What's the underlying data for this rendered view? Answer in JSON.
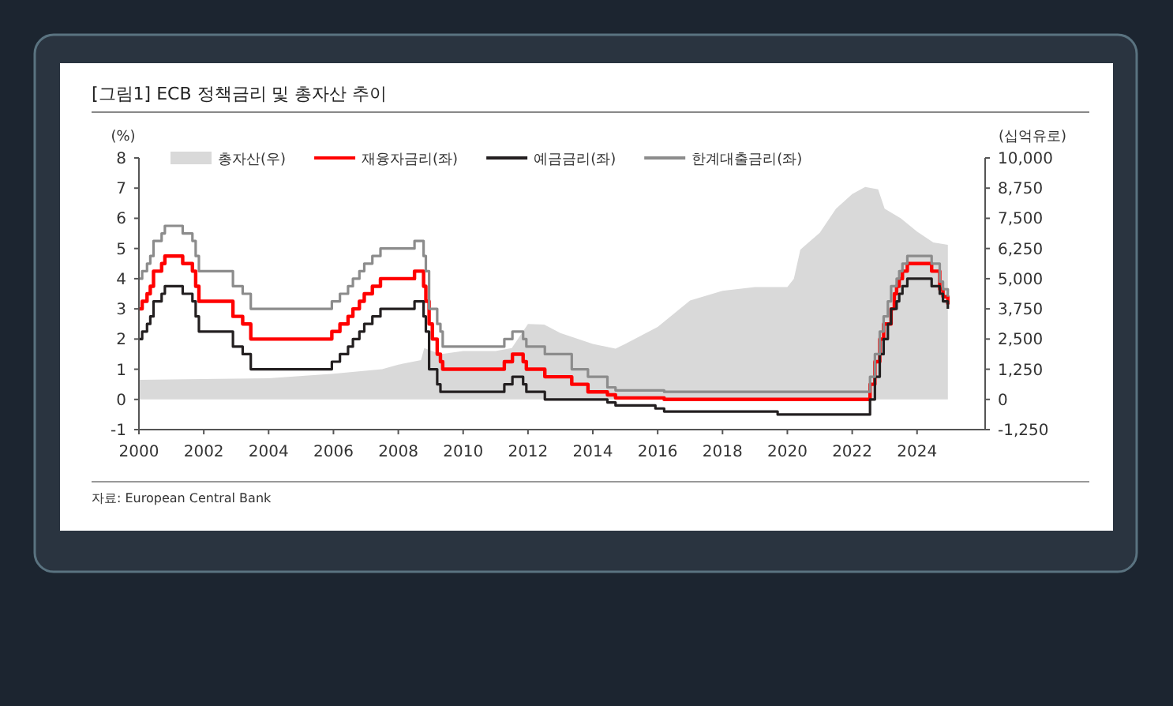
{
  "chart_data": {
    "type": "step",
    "title": "[그림1]    ECB 정책금리 및 총자산 추이",
    "ylabel": "(%)",
    "y2label": "(십억유로)",
    "annotations": [
      "자료: European Central Bank"
    ],
    "legend": "top",
    "xlim": [
      2000,
      2026.1
    ],
    "xticks": [
      2000,
      2002,
      2004,
      2006,
      2008,
      2010,
      2012,
      2014,
      2016,
      2018,
      2020,
      2022,
      2024
    ],
    "ylim": [
      -1,
      8
    ],
    "yticks": [
      -1,
      0,
      1,
      2,
      3,
      4,
      5,
      6,
      7,
      8
    ],
    "y2lim": [
      -1250,
      10000
    ],
    "y2ticks": [
      {
        "value": -1250,
        "label": "-1,250"
      },
      0,
      {
        "value": 1250,
        "label": "1,250"
      },
      {
        "value": 2500,
        "label": "2,500"
      },
      {
        "value": 3750,
        "label": "3,750"
      },
      {
        "value": 5000,
        "label": "5,000"
      },
      {
        "value": 6250,
        "label": "6,250"
      },
      {
        "value": 7500,
        "label": "7,500"
      },
      {
        "value": 8750,
        "label": "8,750"
      },
      {
        "value": 10000,
        "label": "10,000"
      }
    ],
    "series": [
      {
        "name": "총자산(우)",
        "type": "area",
        "axis": "y2",
        "color": "#d9d9d9",
        "x": [
          2000,
          2004,
          2006,
          2007.5,
          2008,
          2008.7,
          2008.8,
          2009.3,
          2010,
          2011,
          2011.5,
          2012,
          2012.5,
          2013,
          2014,
          2014.7,
          2015,
          2016,
          2017,
          2018,
          2019,
          2020,
          2020.2,
          2020.4,
          2021,
          2021.5,
          2022,
          2022.4,
          2022.8,
          2023,
          2023.5,
          2024,
          2024.5,
          2024.95
        ],
        "values": [
          810,
          875,
          1060,
          1250,
          1440,
          1625,
          2125,
          1875,
          2000,
          2000,
          2125,
          3125,
          3100,
          2750,
          2300,
          2100,
          2300,
          3000,
          4100,
          4500,
          4650,
          4650,
          5000,
          6200,
          6900,
          7900,
          8500,
          8800,
          8700,
          7900,
          7500,
          6950,
          6500,
          6400
        ]
      },
      {
        "name": "재융자금리(좌)",
        "color": "#ff0000",
        "x": [
          2000,
          2000.1,
          2000.25,
          2000.35,
          2000.45,
          2000.7,
          2000.8,
          2001.35,
          2001.65,
          2001.75,
          2001.85,
          2002.9,
          2003.2,
          2003.45,
          2005.95,
          2006.2,
          2006.45,
          2006.6,
          2006.8,
          2006.95,
          2007.2,
          2007.45,
          2008.5,
          2008.78,
          2008.85,
          2008.95,
          2009.05,
          2009.2,
          2009.3,
          2009.37,
          2011.27,
          2011.52,
          2011.85,
          2011.95,
          2012.52,
          2013.35,
          2013.85,
          2014.45,
          2014.7,
          2016.2,
          2022.55,
          2022.7,
          2022.85,
          2022.97,
          2023.2,
          2023.3,
          2023.37,
          2023.45,
          2023.55,
          2023.7,
          2024.45,
          2024.7,
          2024.8,
          2024.95
        ],
        "values": [
          3,
          3.25,
          3.5,
          3.75,
          4.25,
          4.5,
          4.75,
          4.5,
          4.25,
          3.75,
          3.25,
          2.75,
          2.5,
          2,
          2.25,
          2.5,
          2.75,
          3,
          3.25,
          3.5,
          3.75,
          4,
          4.25,
          3.75,
          3.25,
          2.5,
          2,
          1.5,
          1.25,
          1,
          1.25,
          1.5,
          1.25,
          1,
          0.75,
          0.5,
          0.25,
          0.15,
          0.05,
          0,
          0.5,
          1.25,
          2,
          2.5,
          3,
          3.5,
          3.75,
          4,
          4.25,
          4.5,
          4.25,
          3.65,
          3.4,
          3.15
        ]
      },
      {
        "name": "예금금리(좌)",
        "color": "#231f20",
        "x": [
          2000,
          2000.1,
          2000.25,
          2000.35,
          2000.45,
          2000.7,
          2000.8,
          2001.35,
          2001.65,
          2001.75,
          2001.85,
          2002.9,
          2003.2,
          2003.45,
          2005.95,
          2006.2,
          2006.45,
          2006.6,
          2006.8,
          2006.95,
          2007.2,
          2007.45,
          2008.5,
          2008.78,
          2008.85,
          2008.95,
          2009.2,
          2009.3,
          2011.27,
          2011.52,
          2011.85,
          2011.95,
          2012.52,
          2014.45,
          2014.7,
          2015.93,
          2016.2,
          2019.7,
          2022.55,
          2022.7,
          2022.85,
          2022.97,
          2023.1,
          2023.2,
          2023.37,
          2023.45,
          2023.55,
          2023.7,
          2024.45,
          2024.7,
          2024.8,
          2024.95
        ],
        "values": [
          2,
          2.25,
          2.5,
          2.75,
          3.25,
          3.5,
          3.75,
          3.5,
          3.25,
          2.75,
          2.25,
          1.75,
          1.5,
          1,
          1.25,
          1.5,
          1.75,
          2,
          2.25,
          2.5,
          2.75,
          3,
          3.25,
          2.75,
          2.25,
          1,
          0.5,
          0.25,
          0.5,
          0.75,
          0.5,
          0.25,
          0,
          -0.1,
          -0.2,
          -0.3,
          -0.4,
          -0.5,
          0,
          0.75,
          1.5,
          2,
          2.5,
          3,
          3.25,
          3.5,
          3.75,
          4,
          3.75,
          3.5,
          3.25,
          3
        ]
      },
      {
        "name": "한계대출금리(좌)",
        "color": "#8c8c8c",
        "x": [
          2000,
          2000.1,
          2000.25,
          2000.35,
          2000.45,
          2000.7,
          2000.8,
          2001.35,
          2001.65,
          2001.75,
          2001.85,
          2002.9,
          2003.2,
          2003.45,
          2005.95,
          2006.2,
          2006.45,
          2006.6,
          2006.8,
          2006.95,
          2007.2,
          2007.45,
          2008.5,
          2008.78,
          2008.85,
          2008.95,
          2009.2,
          2009.3,
          2009.37,
          2011.27,
          2011.52,
          2011.85,
          2011.95,
          2012.52,
          2013.35,
          2013.85,
          2014.45,
          2014.7,
          2016.2,
          2022.55,
          2022.7,
          2022.85,
          2022.97,
          2023.1,
          2023.2,
          2023.37,
          2023.45,
          2023.55,
          2023.7,
          2024.45,
          2024.7,
          2024.8,
          2024.95
        ],
        "values": [
          4,
          4.25,
          4.5,
          4.75,
          5.25,
          5.5,
          5.75,
          5.5,
          5.25,
          4.75,
          4.25,
          3.75,
          3.5,
          3,
          3.25,
          3.5,
          3.75,
          4,
          4.25,
          4.5,
          4.75,
          5,
          5.25,
          4.75,
          4.25,
          3,
          2.5,
          2.25,
          1.75,
          2,
          2.25,
          2,
          1.75,
          1.5,
          1,
          0.75,
          0.4,
          0.3,
          0.25,
          0.75,
          1.5,
          2.25,
          2.75,
          3.25,
          3.75,
          4,
          4.25,
          4.5,
          4.75,
          4.5,
          3.9,
          3.65,
          3.4
        ]
      }
    ]
  }
}
